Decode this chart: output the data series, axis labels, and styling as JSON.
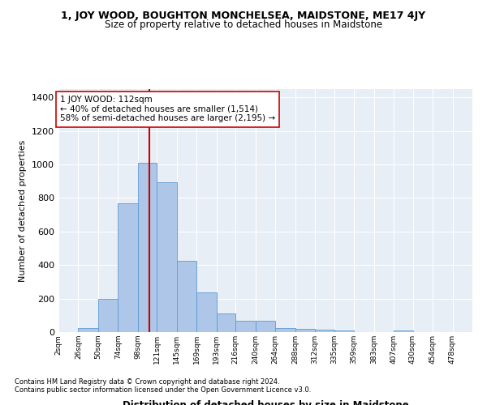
{
  "title_line1": "1, JOY WOOD, BOUGHTON MONCHELSEA, MAIDSTONE, ME17 4JY",
  "title_line2": "Size of property relative to detached houses in Maidstone",
  "xlabel": "Distribution of detached houses by size in Maidstone",
  "ylabel": "Number of detached properties",
  "bin_labels": [
    "2sqm",
    "26sqm",
    "50sqm",
    "74sqm",
    "98sqm",
    "121sqm",
    "145sqm",
    "169sqm",
    "193sqm",
    "216sqm",
    "240sqm",
    "264sqm",
    "288sqm",
    "312sqm",
    "335sqm",
    "359sqm",
    "383sqm",
    "407sqm",
    "430sqm",
    "454sqm",
    "478sqm"
  ],
  "bin_edges": [
    2,
    26,
    50,
    74,
    98,
    121,
    145,
    169,
    193,
    216,
    240,
    264,
    288,
    312,
    335,
    359,
    383,
    407,
    430,
    454,
    478,
    502
  ],
  "bar_heights": [
    0,
    25,
    200,
    770,
    1010,
    895,
    425,
    235,
    110,
    70,
    70,
    25,
    20,
    15,
    10,
    0,
    0,
    12,
    0,
    0,
    0
  ],
  "bar_color": "#aec6e8",
  "bar_edgecolor": "#5b9bd5",
  "vline_x": 112,
  "vline_color": "#cc0000",
  "annotation_text": "1 JOY WOOD: 112sqm\n← 40% of detached houses are smaller (1,514)\n58% of semi-detached houses are larger (2,195) →",
  "annotation_box_color": "#ffffff",
  "annotation_box_edgecolor": "#cc0000",
  "ylim": [
    0,
    1450
  ],
  "yticks": [
    0,
    200,
    400,
    600,
    800,
    1000,
    1200,
    1400
  ],
  "background_color": "#e8eef5",
  "grid_color": "#ffffff",
  "footer_line1": "Contains HM Land Registry data © Crown copyright and database right 2024.",
  "footer_line2": "Contains public sector information licensed under the Open Government Licence v3.0."
}
